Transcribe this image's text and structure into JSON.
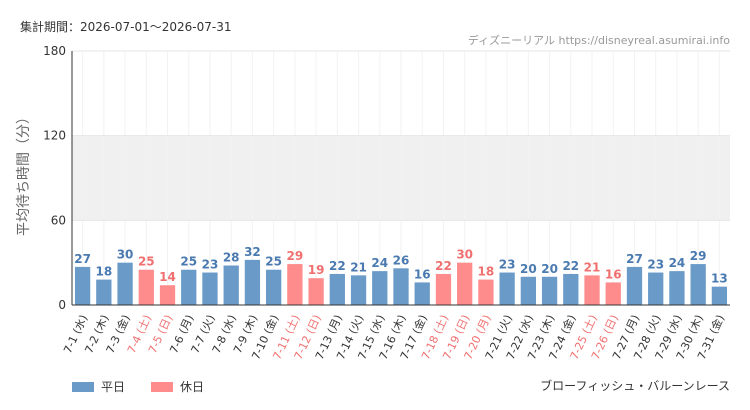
{
  "header": {
    "period": "集計期間：2026-07-01～2026-07-31",
    "credit": "ディズニーリアル https://disneyreal.asumirai.info"
  },
  "colors": {
    "weekday": "#6a9ac8",
    "holiday": "#ff8c8c",
    "band": "#f0f0f0",
    "grid": "#e6e6e6",
    "axis": "#333333",
    "weekday_label": "#4a7ab0",
    "holiday_label": "#f07070"
  },
  "legend": {
    "weekday": "平日",
    "holiday": "休日"
  },
  "attraction": "ブローフィッシュ・バルーンレース",
  "chart_data": {
    "type": "bar",
    "ylabel": "平均待ち時間（分）",
    "ylim": [
      0,
      180
    ],
    "yticks": [
      0,
      60,
      120,
      180
    ],
    "shaded_band": [
      60,
      120
    ],
    "grid": true,
    "legend_position": "bottom-left",
    "categories": [
      "7-1 (水)",
      "7-2 (木)",
      "7-3 (金)",
      "7-4 (土)",
      "7-5 (日)",
      "7-6 (月)",
      "7-7 (火)",
      "7-8 (水)",
      "7-9 (木)",
      "7-10 (金)",
      "7-11 (土)",
      "7-12 (日)",
      "7-13 (月)",
      "7-14 (火)",
      "7-15 (水)",
      "7-16 (木)",
      "7-17 (金)",
      "7-18 (土)",
      "7-19 (日)",
      "7-20 (月)",
      "7-21 (火)",
      "7-22 (水)",
      "7-23 (木)",
      "7-24 (金)",
      "7-25 (土)",
      "7-26 (日)",
      "7-27 (月)",
      "7-28 (火)",
      "7-29 (水)",
      "7-30 (木)",
      "7-31 (金)"
    ],
    "values": [
      27,
      18,
      30,
      25,
      14,
      25,
      23,
      28,
      32,
      25,
      29,
      19,
      22,
      21,
      24,
      26,
      16,
      22,
      30,
      18,
      23,
      20,
      20,
      22,
      21,
      16,
      27,
      23,
      24,
      29,
      13
    ],
    "day_type": [
      "weekday",
      "weekday",
      "weekday",
      "holiday",
      "holiday",
      "weekday",
      "weekday",
      "weekday",
      "weekday",
      "weekday",
      "holiday",
      "holiday",
      "weekday",
      "weekday",
      "weekday",
      "weekday",
      "weekday",
      "holiday",
      "holiday",
      "holiday",
      "weekday",
      "weekday",
      "weekday",
      "weekday",
      "holiday",
      "holiday",
      "weekday",
      "weekday",
      "weekday",
      "weekday",
      "weekday"
    ]
  }
}
